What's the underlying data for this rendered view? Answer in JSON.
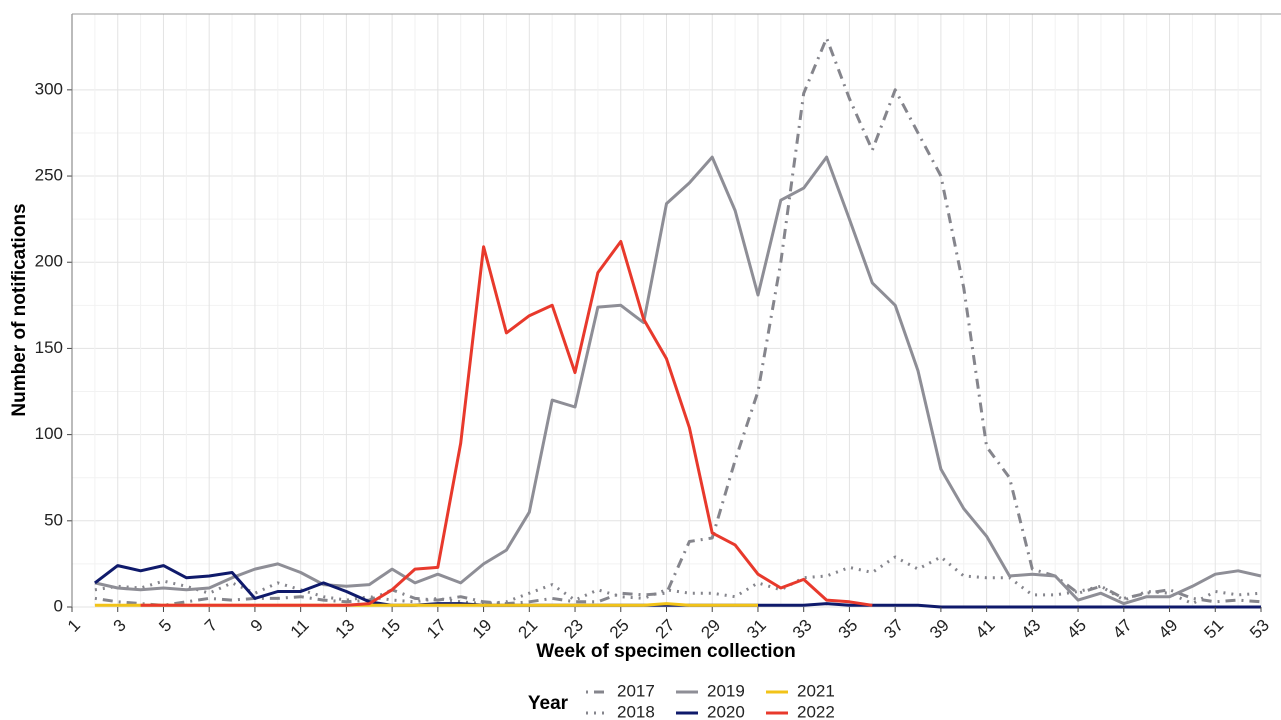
{
  "chart_data": {
    "type": "line",
    "x_label": "Week of specimen collection",
    "y_label": "Number of notifications",
    "legend_title": "Year",
    "legend_position": "bottom",
    "grid": true,
    "x": [
      1,
      2,
      3,
      4,
      5,
      6,
      7,
      8,
      9,
      10,
      11,
      12,
      13,
      14,
      15,
      16,
      17,
      18,
      19,
      20,
      21,
      22,
      23,
      24,
      25,
      26,
      27,
      28,
      29,
      30,
      31,
      32,
      33,
      34,
      35,
      36,
      37,
      38,
      39,
      40,
      41,
      42,
      43,
      44,
      45,
      46,
      47,
      48,
      49,
      50,
      51,
      52,
      53
    ],
    "xlim": [
      1,
      53
    ],
    "xticks": [
      1,
      3,
      5,
      7,
      9,
      11,
      13,
      15,
      17,
      19,
      21,
      23,
      25,
      27,
      29,
      31,
      33,
      35,
      37,
      39,
      41,
      43,
      45,
      47,
      49,
      51,
      53
    ],
    "ylim": [
      0,
      344
    ],
    "yticks": [
      0,
      50,
      100,
      150,
      200,
      250,
      300
    ],
    "series": [
      {
        "name": "2017",
        "color": "#85858c",
        "dash": "dotdash",
        "values": [
          null,
          5,
          3,
          2,
          1,
          3,
          5,
          4,
          5,
          5,
          6,
          4,
          3,
          4,
          10,
          5,
          4,
          6,
          3,
          2,
          3,
          5,
          3,
          3,
          8,
          7,
          8,
          38,
          40,
          85,
          125,
          200,
          298,
          330,
          295,
          265,
          300,
          275,
          250,
          185,
          93,
          75,
          22,
          18,
          8,
          12,
          5,
          8,
          10,
          5,
          3,
          4,
          3
        ]
      },
      {
        "name": "2018",
        "color": "#85858c",
        "dash": "dotted",
        "values": [
          null,
          10,
          12,
          11,
          15,
          12,
          8,
          14,
          8,
          14,
          10,
          6,
          4,
          6,
          4,
          3,
          5,
          3,
          2,
          3,
          8,
          13,
          4,
          10,
          6,
          5,
          10,
          8,
          8,
          6,
          14,
          10,
          17,
          18,
          23,
          20,
          29,
          22,
          29,
          18,
          17,
          17,
          7,
          7,
          9,
          12,
          4,
          9,
          8,
          2,
          9,
          7,
          8
        ]
      },
      {
        "name": "2019",
        "color": "#8e8e96",
        "dash": "solid",
        "values": [
          null,
          14,
          11,
          10,
          11,
          10,
          11,
          17,
          22,
          25,
          20,
          13,
          12,
          13,
          22,
          14,
          19,
          14,
          25,
          33,
          55,
          120,
          116,
          174,
          175,
          165,
          234,
          246,
          261,
          230,
          181,
          236,
          243,
          261,
          225,
          188,
          175,
          137,
          80,
          57,
          41,
          18,
          19,
          18,
          4,
          8,
          2,
          6,
          6,
          12,
          19,
          21,
          18
        ]
      },
      {
        "name": "2020",
        "color": "#0f1a6b",
        "dash": "solid",
        "values": [
          null,
          14,
          24,
          21,
          24,
          17,
          18,
          20,
          5,
          9,
          9,
          14,
          9,
          3,
          1,
          1,
          2,
          2,
          1,
          1,
          1,
          1,
          1,
          1,
          1,
          1,
          1,
          1,
          1,
          1,
          1,
          1,
          1,
          2,
          1,
          1,
          1,
          1,
          0,
          0,
          0,
          0,
          0,
          0,
          0,
          0,
          0,
          0,
          0,
          0,
          0,
          0,
          0
        ]
      },
      {
        "name": "2021",
        "color": "#f2c318",
        "dash": "solid",
        "values": [
          null,
          1,
          1,
          1,
          1,
          1,
          1,
          1,
          1,
          1,
          1,
          1,
          1,
          1,
          1,
          1,
          1,
          1,
          1,
          1,
          1,
          1,
          1,
          1,
          1,
          1,
          2,
          1,
          1,
          1,
          1,
          null,
          null,
          null,
          null,
          null,
          null,
          null,
          null,
          null,
          null,
          null,
          null,
          null,
          null,
          null,
          null,
          null,
          null,
          null,
          null,
          null,
          null
        ]
      },
      {
        "name": "2022",
        "color": "#e8392c",
        "dash": "solid",
        "values": [
          null,
          null,
          null,
          1,
          1,
          1,
          1,
          1,
          1,
          1,
          1,
          1,
          1,
          2,
          10,
          22,
          23,
          95,
          209,
          159,
          169,
          175,
          136,
          194,
          212,
          167,
          144,
          104,
          43,
          36,
          19,
          11,
          16,
          4,
          3,
          1,
          null,
          null,
          null,
          null,
          null,
          null,
          null,
          null,
          null,
          null,
          null,
          null,
          null,
          null,
          null,
          null,
          null
        ]
      }
    ]
  }
}
